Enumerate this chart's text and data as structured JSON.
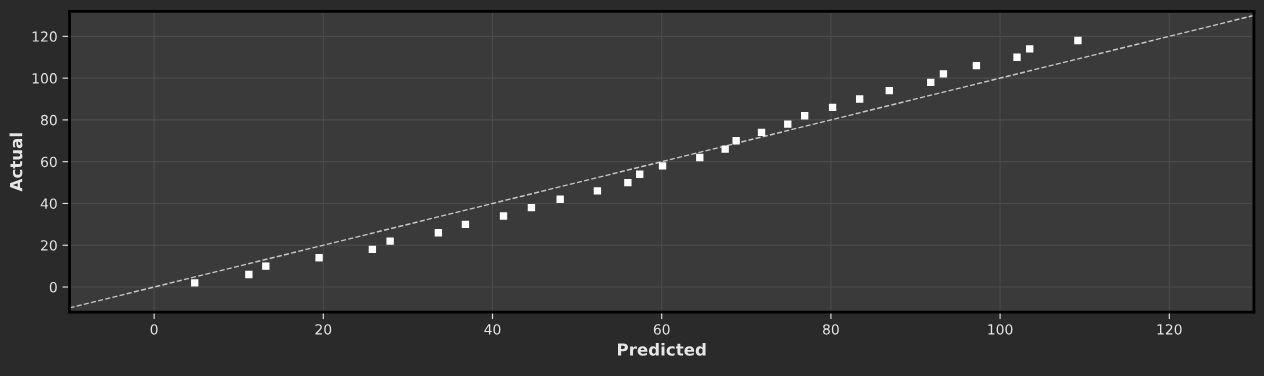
{
  "chart_data": {
    "type": "scatter",
    "xlabel": "Predicted",
    "ylabel": "Actual",
    "xlim": [
      -10,
      130
    ],
    "ylim": [
      -12,
      132
    ],
    "xticks": [
      0,
      20,
      40,
      60,
      80,
      100,
      120
    ],
    "yticks": [
      0,
      20,
      40,
      60,
      80,
      100,
      120
    ],
    "grid": true,
    "legend": false,
    "series": [
      {
        "color": "#ffffff",
        "marker": "square",
        "x": [
          4.8,
          11.2,
          13.2,
          19.5,
          25.8,
          27.9,
          33.6,
          36.8,
          41.3,
          44.6,
          48.0,
          52.4,
          56.0,
          57.4,
          60.1,
          64.5,
          67.5,
          68.8,
          71.8,
          74.9,
          76.9,
          80.2,
          83.4,
          86.9,
          91.8,
          93.3,
          97.2,
          102.0,
          103.5,
          109.2
        ],
        "values": [
          2,
          6,
          10,
          14,
          18,
          22,
          26,
          30,
          34,
          38,
          42,
          46,
          50,
          54,
          58,
          62,
          66,
          70,
          74,
          78,
          82,
          86,
          90,
          94,
          98,
          102,
          106,
          110,
          114,
          118
        ]
      },
      {
        "type": "line",
        "color": "#c8c8c8",
        "line_style": "dashed",
        "marker": "none",
        "x": [
          -10,
          130
        ],
        "values": [
          -10,
          130
        ]
      }
    ]
  }
}
